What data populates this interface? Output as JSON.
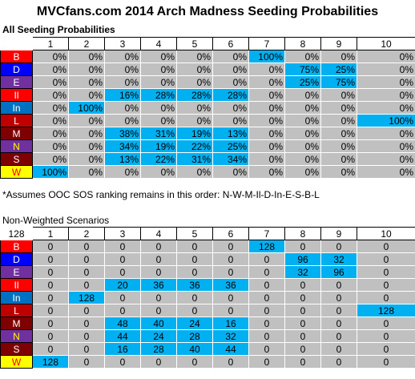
{
  "title": "MVCfans.com 2014 Arch Madness Seeding Probabilities",
  "highlight_color": "#00b0f0",
  "base_cell_color": "#c0c0c0",
  "section1": {
    "heading": "All Seeding Probabilities",
    "corner": "",
    "columns": [
      "1",
      "2",
      "3",
      "4",
      "5",
      "6",
      "7",
      "8",
      "9",
      "10"
    ]
  },
  "section2": {
    "heading": "Non-Weighted Scenarios",
    "corner": "128",
    "columns": [
      "1",
      "2",
      "3",
      "4",
      "5",
      "6",
      "7",
      "8",
      "9",
      "10"
    ]
  },
  "note": "*Assumes OOC SOS ranking remains in this order: N-W-M-Il-D-In-E-S-B-L",
  "teams": [
    {
      "label": "B",
      "bg": "#ff0000",
      "fg": "#ffffff"
    },
    {
      "label": "D",
      "bg": "#0000ff",
      "fg": "#ffffff"
    },
    {
      "label": "E",
      "bg": "#7030a0",
      "fg": "#ffffff"
    },
    {
      "label": "Il",
      "bg": "#ff0000",
      "fg": "#ffffff"
    },
    {
      "label": "In",
      "bg": "#0070c0",
      "fg": "#ffffff"
    },
    {
      "label": "L",
      "bg": "#c00000",
      "fg": "#ffffff"
    },
    {
      "label": "M",
      "bg": "#7f0000",
      "fg": "#ffffff"
    },
    {
      "label": "N",
      "bg": "#7030a0",
      "fg": "#ffff00"
    },
    {
      "label": "S",
      "bg": "#7f0000",
      "fg": "#ffffff"
    },
    {
      "label": "W",
      "bg": "#ffff00",
      "fg": "#ff0000"
    }
  ],
  "probabilities": [
    [
      "0%",
      "0%",
      "0%",
      "0%",
      "0%",
      "0%",
      "100%",
      "0%",
      "0%",
      "0%"
    ],
    [
      "0%",
      "0%",
      "0%",
      "0%",
      "0%",
      "0%",
      "0%",
      "75%",
      "25%",
      "0%"
    ],
    [
      "0%",
      "0%",
      "0%",
      "0%",
      "0%",
      "0%",
      "0%",
      "25%",
      "75%",
      "0%"
    ],
    [
      "0%",
      "0%",
      "16%",
      "28%",
      "28%",
      "28%",
      "0%",
      "0%",
      "0%",
      "0%"
    ],
    [
      "0%",
      "100%",
      "0%",
      "0%",
      "0%",
      "0%",
      "0%",
      "0%",
      "0%",
      "0%"
    ],
    [
      "0%",
      "0%",
      "0%",
      "0%",
      "0%",
      "0%",
      "0%",
      "0%",
      "0%",
      "100%"
    ],
    [
      "0%",
      "0%",
      "38%",
      "31%",
      "19%",
      "13%",
      "0%",
      "0%",
      "0%",
      "0%"
    ],
    [
      "0%",
      "0%",
      "34%",
      "19%",
      "22%",
      "25%",
      "0%",
      "0%",
      "0%",
      "0%"
    ],
    [
      "0%",
      "0%",
      "13%",
      "22%",
      "31%",
      "34%",
      "0%",
      "0%",
      "0%",
      "0%"
    ],
    [
      "100%",
      "0%",
      "0%",
      "0%",
      "0%",
      "0%",
      "0%",
      "0%",
      "0%",
      "0%"
    ]
  ],
  "counts": [
    [
      "0",
      "0",
      "0",
      "0",
      "0",
      "0",
      "128",
      "0",
      "0",
      "0"
    ],
    [
      "0",
      "0",
      "0",
      "0",
      "0",
      "0",
      "0",
      "96",
      "32",
      "0"
    ],
    [
      "0",
      "0",
      "0",
      "0",
      "0",
      "0",
      "0",
      "32",
      "96",
      "0"
    ],
    [
      "0",
      "0",
      "20",
      "36",
      "36",
      "36",
      "0",
      "0",
      "0",
      "0"
    ],
    [
      "0",
      "128",
      "0",
      "0",
      "0",
      "0",
      "0",
      "0",
      "0",
      "0"
    ],
    [
      "0",
      "0",
      "0",
      "0",
      "0",
      "0",
      "0",
      "0",
      "0",
      "128"
    ],
    [
      "0",
      "0",
      "48",
      "40",
      "24",
      "16",
      "0",
      "0",
      "0",
      "0"
    ],
    [
      "0",
      "0",
      "44",
      "24",
      "28",
      "32",
      "0",
      "0",
      "0",
      "0"
    ],
    [
      "0",
      "0",
      "16",
      "28",
      "40",
      "44",
      "0",
      "0",
      "0",
      "0"
    ],
    [
      "128",
      "0",
      "0",
      "0",
      "0",
      "0",
      "0",
      "0",
      "0",
      "0"
    ]
  ]
}
